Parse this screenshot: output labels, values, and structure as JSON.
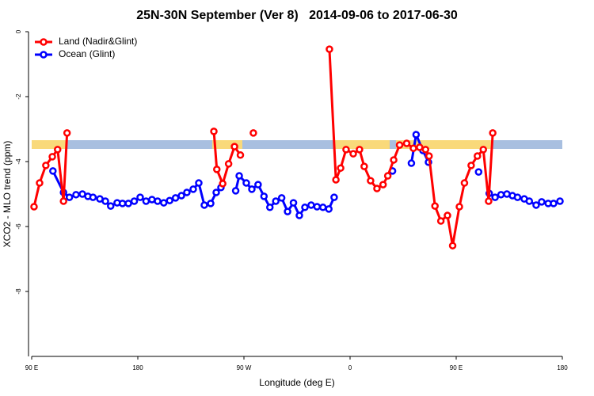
{
  "chart_data": {
    "type": "line",
    "title": "25N-30N September (Ver 8)   2014-09-06 to 2017-06-30",
    "xlabel": "Longitude (deg E)",
    "ylabel": "XCO2 - MLO trend (ppm)",
    "xlim": [
      90,
      540
    ],
    "xticks": [
      {
        "value": 90,
        "label": "90 E"
      },
      180,
      {
        "value": 270,
        "label": "90 W"
      },
      {
        "value": 360,
        "label": "0"
      },
      {
        "value": 450,
        "label": "90 E"
      },
      {
        "value": 540,
        "label": "180"
      }
    ],
    "ylim": [
      -10,
      0
    ],
    "yticks": [
      0,
      -2,
      -4,
      -6,
      -8
    ],
    "legend": "top-left",
    "series": [
      {
        "name": "Land (Nadir&Glint)",
        "color": "#ff0000",
        "x": [
          92,
          96.7,
          102,
          107.5,
          112,
          117,
          120,
          null,
          244.5,
          247,
          252,
          257,
          262,
          267,
          null,
          278,
          null,
          342.5,
          348,
          352,
          356.6,
          362.7,
          368,
          372,
          377.4,
          382.8,
          388,
          392,
          397,
          402,
          408,
          413.7,
          419,
          424,
          427,
          432,
          437,
          442.6,
          447,
          452.7,
          457,
          462.7,
          468,
          473,
          477.5,
          481
        ],
        "values": [
          -5.39,
          -4.66,
          -4.12,
          -3.85,
          -3.63,
          -5.22,
          -3.12,
          null,
          -3.07,
          -4.24,
          -4.68,
          -4.07,
          -3.54,
          -3.8,
          null,
          -3.12,
          null,
          -0.54,
          -4.56,
          -4.2,
          -3.63,
          -3.76,
          -3.63,
          -4.15,
          -4.59,
          -4.83,
          -4.71,
          -4.44,
          -3.95,
          -3.49,
          -3.44,
          -3.59,
          -3.56,
          -3.63,
          -3.83,
          -5.37,
          -5.83,
          -5.66,
          -6.59,
          -5.39,
          -4.66,
          -4.12,
          -3.83,
          -3.63,
          -5.22,
          -3.12
        ]
      },
      {
        "name": "Ocean (Glint)",
        "color": "#0000ff",
        "x": [
          108,
          117,
          122,
          127.6,
          133,
          137.7,
          142,
          147.8,
          152.5,
          157,
          162.5,
          167,
          172,
          177,
          182,
          187,
          192,
          196.8,
          202,
          207,
          212,
          217,
          221.6,
          227,
          231.7,
          236.4,
          241.8,
          246.5,
          250.5,
          null,
          263,
          266,
          272,
          276.7,
          282,
          287,
          292,
          297,
          302,
          307,
          312,
          317,
          321.7,
          327,
          332,
          337,
          342,
          346.5,
          null,
          396,
          null,
          412,
          416,
          421.8,
          426.5,
          null,
          469,
          null,
          478,
          483,
          488,
          493,
          497.7,
          502,
          507.7,
          512,
          517.8,
          522.5,
          528,
          532.6,
          538
        ],
        "values": [
          -4.29,
          -4.95,
          -5.1,
          -5.02,
          -5.0,
          -5.07,
          -5.1,
          -5.15,
          -5.22,
          -5.37,
          -5.27,
          -5.29,
          -5.29,
          -5.22,
          -5.1,
          -5.22,
          -5.17,
          -5.22,
          -5.27,
          -5.2,
          -5.12,
          -5.05,
          -4.95,
          -4.85,
          -4.66,
          -5.34,
          -5.29,
          -4.95,
          -4.8,
          null,
          -4.9,
          -4.44,
          -4.66,
          -4.85,
          -4.71,
          -5.07,
          -5.41,
          -5.22,
          -5.12,
          -5.54,
          -5.27,
          -5.66,
          -5.41,
          -5.34,
          -5.39,
          -5.41,
          -5.46,
          -5.1,
          null,
          -4.29,
          null,
          -4.05,
          -3.17,
          -3.66,
          -4.02,
          null,
          -4.32,
          null,
          -4.98,
          -5.1,
          -5.02,
          -5.0,
          -5.05,
          -5.1,
          -5.15,
          -5.22,
          -5.34,
          -5.24,
          -5.29,
          -5.29,
          -5.22
        ]
      }
    ]
  }
}
